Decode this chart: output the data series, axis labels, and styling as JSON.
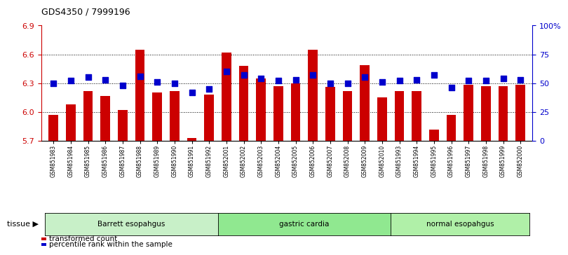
{
  "title": "GDS4350 / 7999196",
  "samples": [
    "GSM851983",
    "GSM851984",
    "GSM851985",
    "GSM851986",
    "GSM851987",
    "GSM851988",
    "GSM851989",
    "GSM851990",
    "GSM851991",
    "GSM851992",
    "GSM852001",
    "GSM852002",
    "GSM852003",
    "GSM852004",
    "GSM852005",
    "GSM852006",
    "GSM852007",
    "GSM852008",
    "GSM852009",
    "GSM852010",
    "GSM851993",
    "GSM851994",
    "GSM851995",
    "GSM851996",
    "GSM851997",
    "GSM851998",
    "GSM851999",
    "GSM852000"
  ],
  "red_values": [
    5.97,
    6.08,
    6.22,
    6.17,
    6.02,
    6.65,
    6.2,
    6.22,
    5.73,
    6.18,
    6.62,
    6.48,
    6.35,
    6.27,
    6.3,
    6.65,
    6.26,
    6.22,
    6.49,
    6.15,
    6.22,
    6.22,
    5.82,
    5.97,
    6.28,
    6.27,
    6.27,
    6.28
  ],
  "blue_values": [
    50,
    52,
    55,
    53,
    48,
    56,
    51,
    50,
    42,
    45,
    60,
    57,
    54,
    52,
    53,
    57,
    50,
    50,
    55,
    51,
    52,
    53,
    57,
    46,
    52,
    52,
    54,
    53
  ],
  "groups": [
    {
      "label": "Barrett esopahgus",
      "start": 0,
      "end": 10,
      "color": "#c8f0c8"
    },
    {
      "label": "gastric cardia",
      "start": 10,
      "end": 20,
      "color": "#90e890"
    },
    {
      "label": "normal esopahgus",
      "start": 20,
      "end": 28,
      "color": "#b0f0a8"
    }
  ],
  "ylim_left": [
    5.7,
    6.9
  ],
  "yticks_left": [
    5.7,
    6.0,
    6.3,
    6.6,
    6.9
  ],
  "ylim_right": [
    0,
    100
  ],
  "yticks_right": [
    0,
    25,
    50,
    75,
    100
  ],
  "ytick_labels_right": [
    "0",
    "25",
    "50",
    "75",
    "100%"
  ],
  "bar_color": "#cc0000",
  "dot_color": "#0000cc",
  "left_axis_color": "#cc0000",
  "right_axis_color": "#0000cc",
  "bar_width": 0.55,
  "dot_size": 28
}
